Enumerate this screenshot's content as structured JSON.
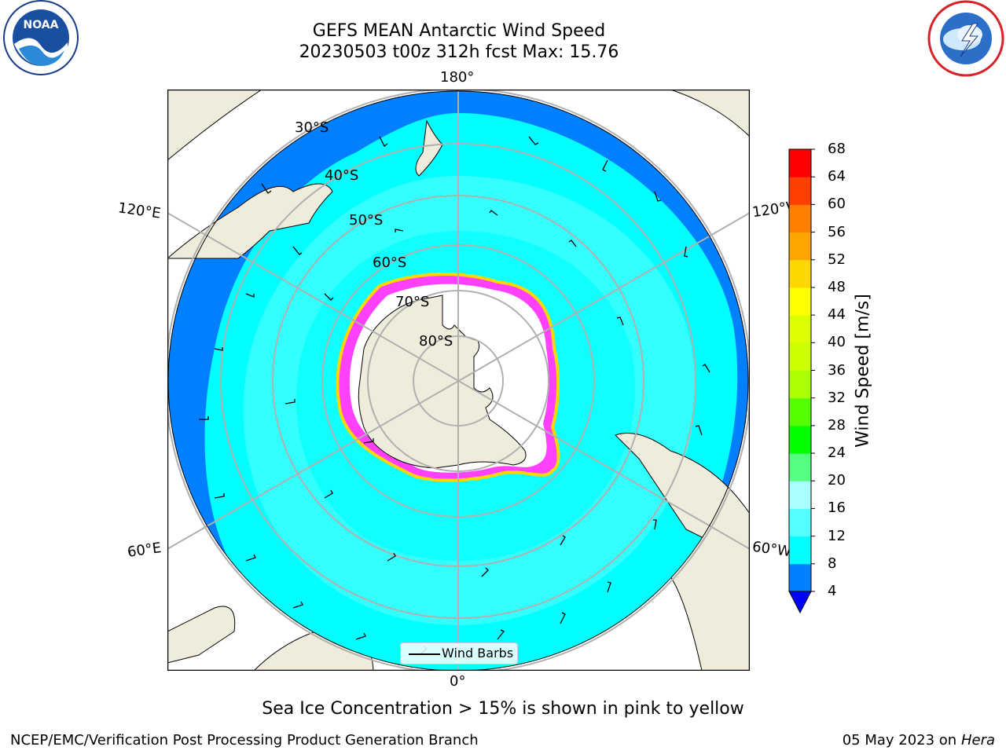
{
  "title_line1": "GEFS MEAN Antarctic Wind Speed",
  "title_line2": "20230503 t00z 312h fcst   Max: 15.76",
  "logos": {
    "left": "noaa-logo",
    "right": "nws-logo"
  },
  "map": {
    "projection": "south-polar-stereographic",
    "latitude_labels": [
      "30°S",
      "40°S",
      "50°S",
      "60°S",
      "70°S",
      "80°S"
    ],
    "longitude_labels": {
      "top": "180°",
      "bottom": "0°",
      "upper_left": "120°E",
      "lower_left": "60°E",
      "upper_right": "120°W",
      "lower_right": "60°W"
    },
    "colors": {
      "land": "#efecdc",
      "ocean_low": "#0080ff",
      "ocean_mid": "#00ffff",
      "ocean_high": "#55ffff",
      "sea_ice": "#ff40ff",
      "sea_ice_edge": "#ffd700"
    }
  },
  "legend": {
    "label": "Wind Barbs"
  },
  "colorbar": {
    "label": "Wind Speed [m/s]",
    "ticks": [
      "4",
      "8",
      "12",
      "16",
      "20",
      "24",
      "28",
      "32",
      "36",
      "40",
      "44",
      "48",
      "52",
      "56",
      "60",
      "64",
      "68"
    ],
    "colors": [
      "#0000ff",
      "#0080ff",
      "#00ffff",
      "#55ffff",
      "#aaffff",
      "#55ff80",
      "#00ff00",
      "#55ff00",
      "#aaff00",
      "#ccff00",
      "#ddff00",
      "#ffff00",
      "#ffd700",
      "#ffa500",
      "#ff8000",
      "#ff4000",
      "#ff0000"
    ]
  },
  "caption": "Sea Ice Concentration > 15% is shown in pink to yellow",
  "footer_left": "NCEP/EMC/Verification Post Processing Product Generation Branch",
  "footer_right_date": "05 May 2023 on",
  "footer_right_host": "Hera"
}
